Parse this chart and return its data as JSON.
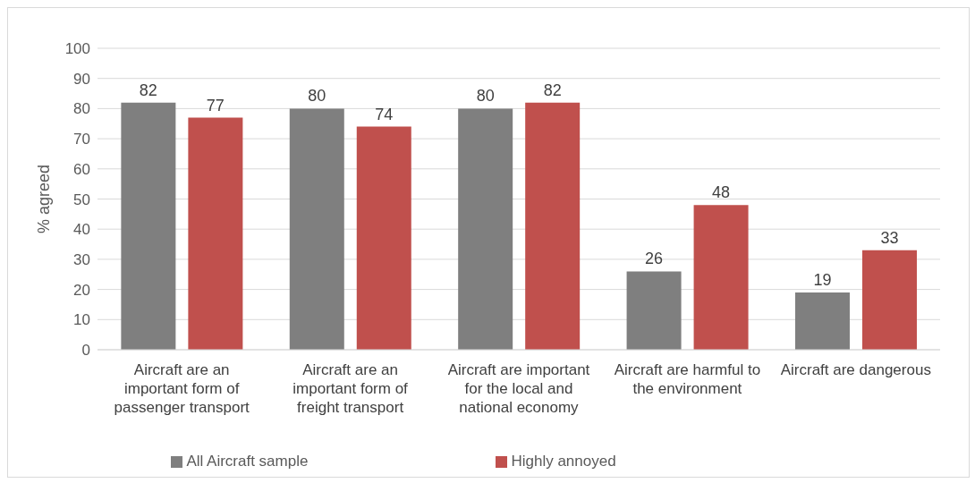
{
  "chart_data": {
    "type": "bar",
    "ylabel": "% agreed",
    "categories": [
      "Aircraft are an important form of passenger transport",
      "Aircraft are an important form of freight transport",
      "Aircraft are important for the local and national economy",
      "Aircraft are harmful to the environment",
      "Aircraft are dangerous"
    ],
    "series": [
      {
        "name": "All Aircraft sample",
        "color": "#7f7f7f",
        "values": [
          82,
          80,
          80,
          26,
          19
        ]
      },
      {
        "name": "Highly annoyed",
        "color": "#c0504d",
        "values": [
          77,
          74,
          82,
          48,
          33
        ]
      }
    ],
    "ylim": [
      0,
      100
    ],
    "yticks": [
      0,
      10,
      20,
      30,
      40,
      50,
      60,
      70,
      80,
      90,
      100
    ],
    "grid": "y",
    "legend": "bottom",
    "data_labels": true
  }
}
